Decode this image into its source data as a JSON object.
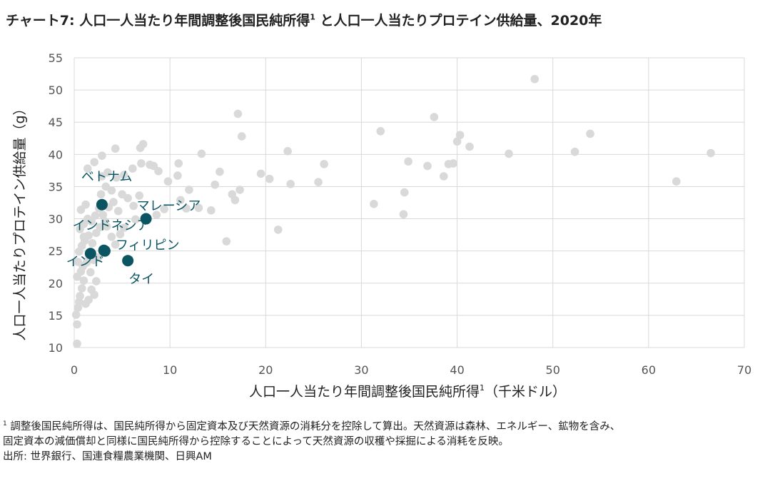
{
  "header": {
    "title": "チャート7: 人口一人当たり年間調整後国民純所得",
    "title_sup": "1",
    "title_tail": " と人口一人当たりプロテイン供給量、2020年"
  },
  "footnote": {
    "line1_sup": "1",
    "line1": " 調整後国民純所得は、国民純所得から固定資本及び天然資源の消耗分を控除して算出。天然資源は森林、エネルギー、鉱物を含み、",
    "line2": "固定資本の減価償却と同様に国民純所得から控除することによって天然資源の収穫や採掘による消耗を反映。",
    "line3": "出所: 世界銀行、国連食糧農業機関、日興AM"
  },
  "chart_data": {
    "type": "scatter",
    "xlabel": "人口一人当たり年間調整後国民純所得",
    "xlabel_sup": "1",
    "xlabel_unit": "（千米ドル）",
    "ylabel": "人口一人当たりプロテイン供給量（g）",
    "xlim": [
      0,
      70
    ],
    "ylim": [
      10,
      55
    ],
    "x_ticks": [
      "0",
      "10",
      "20",
      "30",
      "40",
      "50",
      "60",
      "70"
    ],
    "y_ticks": [
      "10",
      "15",
      "20",
      "25",
      "30",
      "35",
      "40",
      "45",
      "50",
      "55"
    ],
    "grid": true,
    "colors": {
      "background_points": "#d9d9d9",
      "highlight_points": "#0b5563",
      "grid": "#d9d9d9"
    },
    "series": [
      {
        "points": [
          [
            0.3,
            10.6
          ],
          [
            0.3,
            13.6
          ],
          [
            0.2,
            15.1
          ],
          [
            0.4,
            16.2
          ],
          [
            0.5,
            17.1
          ],
          [
            0.6,
            18.0
          ],
          [
            0.8,
            19.2
          ],
          [
            1.0,
            20.4
          ],
          [
            0.3,
            21.0
          ],
          [
            0.7,
            21.8
          ],
          [
            1.2,
            16.8
          ],
          [
            1.5,
            17.4
          ],
          [
            1.8,
            19.0
          ],
          [
            2.1,
            18.2
          ],
          [
            2.3,
            20.3
          ],
          [
            0.9,
            22.6
          ],
          [
            1.3,
            23.2
          ],
          [
            1.6,
            24.0
          ],
          [
            2.0,
            23.6
          ],
          [
            0.5,
            24.9
          ],
          [
            0.8,
            25.8
          ],
          [
            1.1,
            26.6
          ],
          [
            1.5,
            27.4
          ],
          [
            1.9,
            26.2
          ],
          [
            2.3,
            27.8
          ],
          [
            0.6,
            28.4
          ],
          [
            1.0,
            29.2
          ],
          [
            1.4,
            30.0
          ],
          [
            1.8,
            29.6
          ],
          [
            2.2,
            30.5
          ],
          [
            0.7,
            31.4
          ],
          [
            1.2,
            32.2
          ],
          [
            2.6,
            31.6
          ],
          [
            3.0,
            30.6
          ],
          [
            3.4,
            28.8
          ],
          [
            3.9,
            27.2
          ],
          [
            4.3,
            26.0
          ],
          [
            4.8,
            27.6
          ],
          [
            5.2,
            28.6
          ],
          [
            3.2,
            29.6
          ],
          [
            3.6,
            31.8
          ],
          [
            4.1,
            32.6
          ],
          [
            4.6,
            31.2
          ],
          [
            5.0,
            33.8
          ],
          [
            5.6,
            33.2
          ],
          [
            6.2,
            32.0
          ],
          [
            6.8,
            33.6
          ],
          [
            2.8,
            33.8
          ],
          [
            3.3,
            35.0
          ],
          [
            3.9,
            34.4
          ],
          [
            4.4,
            36.4
          ],
          [
            5.2,
            36.8
          ],
          [
            6.1,
            37.8
          ],
          [
            7.0,
            38.6
          ],
          [
            7.9,
            38.4
          ],
          [
            8.8,
            37.4
          ],
          [
            9.8,
            35.8
          ],
          [
            2.9,
            36.6
          ],
          [
            3.5,
            37.2
          ],
          [
            1.4,
            37.8
          ],
          [
            2.1,
            38.8
          ],
          [
            2.9,
            39.8
          ],
          [
            4.3,
            40.9
          ],
          [
            6.9,
            41.0
          ],
          [
            7.2,
            41.6
          ],
          [
            8.3,
            38.2
          ],
          [
            10.9,
            38.6
          ],
          [
            10.8,
            36.7
          ],
          [
            12.0,
            34.5
          ],
          [
            11.1,
            32.9
          ],
          [
            11.7,
            31.6
          ],
          [
            13.0,
            31.7
          ],
          [
            13.3,
            40.1
          ],
          [
            14.7,
            35.3
          ],
          [
            15.2,
            37.3
          ],
          [
            14.3,
            31.3
          ],
          [
            16.5,
            33.8
          ],
          [
            16.8,
            32.9
          ],
          [
            17.3,
            34.5
          ],
          [
            17.1,
            46.3
          ],
          [
            17.5,
            42.8
          ],
          [
            15.9,
            26.5
          ],
          [
            19.5,
            37.0
          ],
          [
            20.4,
            36.2
          ],
          [
            21.3,
            28.3
          ],
          [
            22.3,
            40.5
          ],
          [
            22.6,
            35.4
          ],
          [
            25.5,
            35.7
          ],
          [
            26.1,
            38.5
          ],
          [
            31.3,
            32.3
          ],
          [
            32.0,
            43.6
          ],
          [
            34.4,
            30.7
          ],
          [
            34.5,
            34.1
          ],
          [
            34.9,
            38.9
          ],
          [
            36.9,
            38.2
          ],
          [
            37.6,
            45.8
          ],
          [
            38.6,
            36.6
          ],
          [
            39.1,
            38.5
          ],
          [
            39.6,
            38.6
          ],
          [
            40.0,
            42.0
          ],
          [
            40.3,
            43.0
          ],
          [
            41.3,
            41.2
          ],
          [
            45.4,
            40.1
          ],
          [
            48.1,
            51.7
          ],
          [
            52.3,
            40.4
          ],
          [
            53.9,
            43.2
          ],
          [
            62.9,
            35.8
          ],
          [
            66.5,
            40.2
          ],
          [
            0.4,
            23.3
          ],
          [
            1.7,
            21.7
          ],
          [
            2.5,
            24.0
          ],
          [
            1.0,
            27.2
          ],
          [
            2.7,
            28.7
          ],
          [
            6.4,
            29.9
          ],
          [
            8.6,
            30.6
          ],
          [
            9.4,
            31.5
          ]
        ]
      },
      {
        "points": [
          {
            "label": "ベトナム",
            "x": 2.9,
            "y": 32.2
          },
          {
            "label": "マレーシア",
            "x": 7.5,
            "y": 30.0
          },
          {
            "label": "インドネシア",
            "x": 3.1,
            "y": 25.1
          },
          {
            "label": "フィリピン",
            "x": 3.2,
            "y": 25.0
          },
          {
            "label": "インド",
            "x": 1.7,
            "y": 24.6
          },
          {
            "label": "タイ",
            "x": 5.6,
            "y": 23.5
          }
        ]
      }
    ]
  }
}
